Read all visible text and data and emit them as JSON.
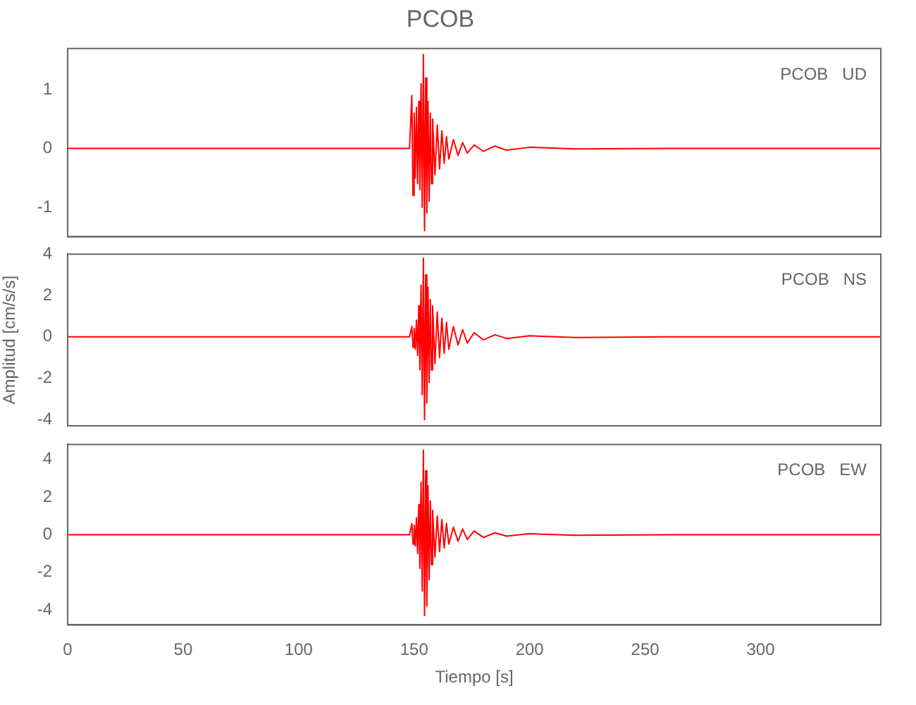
{
  "chart_data": [
    {
      "type": "line",
      "title": "PCOB",
      "annotations": [
        "PCOB   UD"
      ],
      "tick_labels": "y",
      "grid": false,
      "legend": false,
      "marker": "none",
      "line_style": "solid",
      "xlim": [
        0,
        352
      ],
      "xticks": [
        0,
        50,
        100,
        150,
        200,
        250,
        300
      ],
      "ylim": [
        -1.5,
        1.7
      ],
      "yticks": [
        -1,
        0,
        1
      ],
      "x": [
        0,
        50,
        100,
        148,
        149,
        149.5,
        150,
        150.5,
        151,
        151.5,
        152,
        152.5,
        153,
        153.5,
        154,
        154.5,
        155,
        155.5,
        156,
        156.5,
        157,
        157.5,
        158,
        159,
        160,
        161,
        162,
        163,
        164,
        165,
        167,
        169,
        171,
        173,
        176,
        180,
        185,
        190,
        200,
        220,
        260,
        300,
        352
      ],
      "series": [
        {
          "color": "#ff0000",
          "values": [
            0,
            0,
            0,
            0,
            0.9,
            -0.8,
            0.6,
            -0.5,
            0.7,
            -0.6,
            0.8,
            -0.7,
            1.1,
            -1.0,
            1.6,
            -1.4,
            1.2,
            -1.1,
            0.8,
            -0.9,
            0.6,
            -0.6,
            0.5,
            -0.45,
            0.4,
            -0.35,
            0.3,
            -0.25,
            0.2,
            -0.18,
            0.15,
            -0.12,
            0.1,
            -0.08,
            0.06,
            -0.05,
            0.04,
            -0.03,
            0.02,
            -0.01,
            0,
            0,
            0
          ]
        }
      ]
    },
    {
      "type": "line",
      "ylabel": "Amplitud [cm/s/s]",
      "annotations": [
        "PCOB   NS"
      ],
      "tick_labels": "y",
      "grid": false,
      "legend": false,
      "marker": "none",
      "line_style": "solid",
      "xlim": [
        0,
        352
      ],
      "xticks": [
        0,
        50,
        100,
        150,
        200,
        250,
        300
      ],
      "ylim": [
        -4.3,
        4
      ],
      "yticks": [
        -4,
        -2,
        0,
        2,
        4
      ],
      "x": [
        0,
        50,
        100,
        148,
        149,
        149.5,
        150,
        150.5,
        151,
        151.5,
        152,
        152.5,
        153,
        153.5,
        154,
        154.5,
        155,
        155.5,
        156,
        156.5,
        157,
        157.5,
        158,
        159,
        160,
        161,
        162,
        163,
        164,
        165,
        167,
        169,
        171,
        173,
        176,
        180,
        185,
        190,
        200,
        220,
        260,
        300,
        352
      ],
      "series": [
        {
          "color": "#ff0000",
          "values": [
            0,
            0,
            0,
            0,
            0.5,
            -0.5,
            0.4,
            -0.6,
            0.8,
            -0.9,
            1.5,
            -1.6,
            2.5,
            -2.8,
            3.8,
            -4.0,
            3.0,
            -3.2,
            2.4,
            -2.2,
            1.8,
            -1.6,
            1.5,
            -1.3,
            1.2,
            -1.0,
            0.9,
            -0.8,
            0.7,
            -0.6,
            0.5,
            -0.4,
            0.35,
            -0.3,
            0.2,
            -0.15,
            0.1,
            -0.08,
            0.05,
            -0.03,
            0,
            0,
            0
          ]
        }
      ]
    },
    {
      "type": "line",
      "xlabel": "Tiempo [s]",
      "annotations": [
        "PCOB   EW"
      ],
      "grid": false,
      "legend": false,
      "marker": "none",
      "line_style": "solid",
      "xlim": [
        0,
        352
      ],
      "xticks": [
        0,
        50,
        100,
        150,
        200,
        250,
        300
      ],
      "ylim": [
        -4.8,
        4.8
      ],
      "yticks": [
        -4,
        -2,
        0,
        2,
        4
      ],
      "x": [
        0,
        50,
        100,
        148,
        149,
        149.5,
        150,
        150.5,
        151,
        151.5,
        152,
        152.5,
        153,
        153.5,
        154,
        154.5,
        155,
        155.5,
        156,
        156.5,
        157,
        157.5,
        158,
        159,
        160,
        161,
        162,
        163,
        164,
        165,
        167,
        169,
        171,
        173,
        176,
        180,
        185,
        190,
        200,
        220,
        260,
        300,
        352
      ],
      "series": [
        {
          "color": "#ff0000",
          "values": [
            0,
            0,
            0,
            0,
            0.6,
            -0.5,
            0.5,
            -0.6,
            0.9,
            -1.0,
            1.6,
            -1.8,
            2.8,
            -3.0,
            4.5,
            -4.3,
            3.4,
            -3.8,
            2.6,
            -2.4,
            1.8,
            -1.6,
            1.3,
            -1.2,
            1.0,
            -0.9,
            0.8,
            -0.7,
            0.6,
            -0.5,
            0.4,
            -0.35,
            0.3,
            -0.25,
            0.2,
            -0.15,
            0.1,
            -0.08,
            0.05,
            -0.03,
            0,
            0,
            0
          ]
        }
      ]
    }
  ]
}
